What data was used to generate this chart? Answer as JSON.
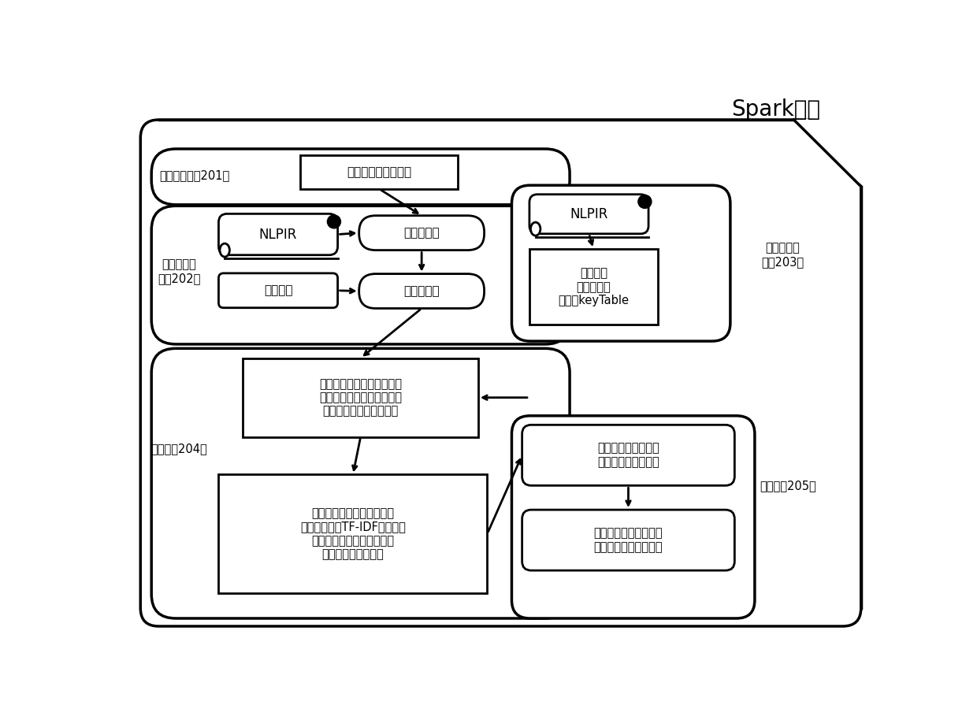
{
  "title": "Spark平台",
  "bg_color": "#ffffff",
  "border_color": "#000000",
  "module201_label": "文本获取模块201：",
  "module202_label": "文本预处理\n模块202：",
  "module203_label": "关键词统计\n模块203：",
  "module204_label": "聚类模块204：",
  "module205_label": "分组模块205：",
  "box_online": "线上讨论短文本获取",
  "box_fenci": "分词预处理",
  "box_tingci": "停用词过滤",
  "nlpir1_label": "NLPIR",
  "stopword_label": "停用词表",
  "box_keyword_mining": "各文本项\n关键词挖掘\n统计于keyTable",
  "nlpir2_label": "NLPIR",
  "box_combine": "结合准频繁项集间语义相关\n系和关键词统计表，计算项\n集间语义相似度，粗归簇",
  "box_cluster": "将簇内频繁项集逆映射到文\n本集中，根据TF-IDF对文本集\n进行特征选择，按各簇内短\n文本间距离迭代归簇",
  "box_sort": "将按聚类结果分成的\n组按支持度降序排列",
  "box_nearest": "每组最靠近聚类中心的\n文本放在该组第一位置"
}
